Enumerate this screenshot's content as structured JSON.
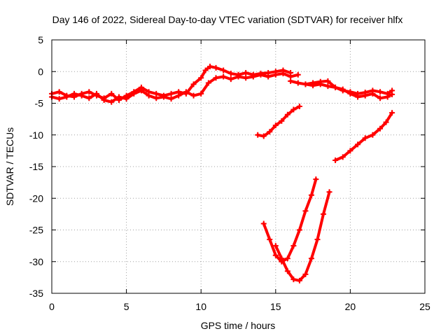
{
  "chart_data": {
    "type": "scatter",
    "title": "Day 146 of 2022, Sidereal Day-to-day VTEC variation (SDTVAR) for receiver hlfx",
    "xlabel": "GPS time / hours",
    "ylabel": "SDTVAR / TECUs",
    "xlim": [
      0,
      25
    ],
    "ylim": [
      -35,
      5
    ],
    "xticks": [
      0,
      5,
      10,
      15,
      20,
      25
    ],
    "yticks": [
      5,
      0,
      -5,
      -10,
      -15,
      -20,
      -25,
      -30,
      -35
    ],
    "grid": true,
    "marker": "+",
    "series_color": "#ff0000",
    "series": [
      {
        "x": [
          0.0,
          0.5,
          1.0,
          1.5,
          2.0,
          2.5,
          3.0,
          3.5,
          4.0,
          4.5,
          5.0,
          5.5,
          6.0,
          6.5,
          7.0,
          7.5,
          8.0,
          8.5,
          9.0,
          9.5,
          10.0,
          10.3,
          10.6,
          11.0,
          11.5,
          12.0,
          12.5,
          13.0,
          13.5,
          14.0,
          14.5,
          15.0,
          15.5,
          16.0
        ],
        "y": [
          -3.5,
          -3.2,
          -3.8,
          -4.0,
          -3.5,
          -3.2,
          -3.8,
          -4.2,
          -3.5,
          -4.5,
          -3.8,
          -3.2,
          -2.5,
          -3.2,
          -3.5,
          -3.8,
          -3.5,
          -3.2,
          -3.5,
          -2.0,
          -1.0,
          0.2,
          0.8,
          0.6,
          0.2,
          -0.3,
          -0.5,
          -0.2,
          -0.5,
          -0.3,
          -0.2,
          0.0,
          0.2,
          -0.2
        ]
      },
      {
        "x": [
          0.0,
          0.5,
          1.0,
          1.5,
          2.0,
          2.5,
          3.0,
          3.5,
          4.0,
          4.5,
          5.0,
          5.5,
          6.0,
          6.5,
          7.0,
          7.5,
          8.0,
          8.5,
          9.0,
          9.5,
          10.0,
          10.5,
          11.0,
          11.5,
          12.0,
          12.5,
          13.0,
          13.5,
          14.0,
          14.5,
          15.0,
          15.5,
          16.0,
          16.5
        ],
        "y": [
          -4.0,
          -4.3,
          -4.0,
          -3.5,
          -3.8,
          -4.2,
          -3.5,
          -4.5,
          -4.8,
          -4.0,
          -4.3,
          -3.5,
          -3.0,
          -3.8,
          -4.2,
          -4.0,
          -4.3,
          -3.8,
          -3.2,
          -3.8,
          -3.5,
          -1.8,
          -1.0,
          -0.8,
          -1.2,
          -0.8,
          -1.0,
          -0.8,
          -0.5,
          -0.8,
          -0.5,
          -0.3,
          -0.8,
          -0.5
        ]
      },
      {
        "x": [
          16.0,
          16.5,
          17.0,
          17.5,
          18.0,
          18.5,
          19.0,
          19.5,
          20.0,
          20.5,
          21.0,
          21.5,
          22.0,
          22.5,
          22.8
        ],
        "y": [
          -1.5,
          -1.8,
          -2.0,
          -1.8,
          -1.6,
          -1.5,
          -2.5,
          -3.0,
          -3.2,
          -3.5,
          -3.3,
          -3.0,
          -3.2,
          -3.5,
          -3.0
        ]
      },
      {
        "x": [
          17.0,
          17.5,
          18.0,
          18.5,
          19.0,
          19.5,
          20.0,
          20.5,
          21.0,
          21.5,
          22.0,
          22.5,
          22.8
        ],
        "y": [
          -2.0,
          -2.2,
          -2.0,
          -2.3,
          -2.5,
          -2.8,
          -3.5,
          -4.0,
          -3.8,
          -3.5,
          -4.2,
          -4.0,
          -3.6
        ]
      },
      {
        "x": [
          13.8,
          14.2,
          14.6,
          15.0,
          15.4,
          15.8,
          16.2,
          16.6
        ],
        "y": [
          -10.0,
          -10.2,
          -9.5,
          -8.5,
          -7.8,
          -6.8,
          -6.0,
          -5.5
        ]
      },
      {
        "x": [
          19.0,
          19.5,
          20.0,
          20.5,
          21.0,
          21.5,
          22.0,
          22.4,
          22.8
        ],
        "y": [
          -14.0,
          -13.5,
          -12.5,
          -11.5,
          -10.5,
          -10.0,
          -9.0,
          -8.0,
          -6.5
        ]
      },
      {
        "x": [
          14.2,
          14.6,
          15.0,
          15.4,
          15.8,
          16.2,
          16.6,
          17.0,
          17.4,
          17.7
        ],
        "y": [
          -24.0,
          -26.5,
          -29.0,
          -30.0,
          -29.5,
          -27.5,
          -25.0,
          -22.0,
          -19.5,
          -17.0
        ]
      },
      {
        "x": [
          15.0,
          15.4,
          15.8,
          16.2,
          16.6,
          17.0,
          17.4,
          17.8,
          18.2,
          18.6
        ],
        "y": [
          -27.5,
          -29.5,
          -31.5,
          -32.8,
          -33.0,
          -32.0,
          -29.5,
          -26.5,
          -22.5,
          -19.0
        ]
      }
    ]
  }
}
